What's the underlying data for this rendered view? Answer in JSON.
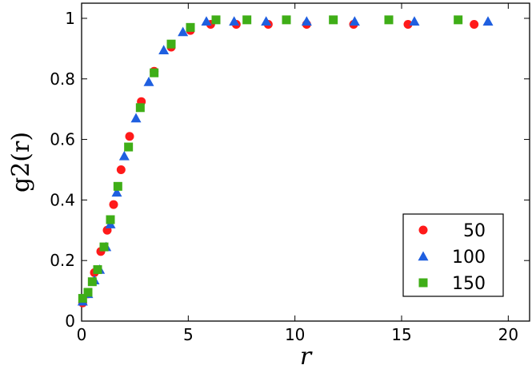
{
  "chart_data": {
    "type": "scatter",
    "xlabel": "r",
    "ylabel": "g2(r)",
    "xlim": [
      0,
      21
    ],
    "ylim": [
      0,
      1.05
    ],
    "xticks": [
      0,
      5,
      10,
      15,
      20
    ],
    "yticks": [
      0,
      0.2,
      0.4,
      0.6,
      0.8,
      1
    ],
    "x_tick_labels": [
      "0",
      "5",
      "10",
      "15",
      "20"
    ],
    "y_tick_labels": [
      "0",
      "0.2",
      "0.4",
      "0.6",
      "0.8",
      "1"
    ],
    "grid": false,
    "legend_position": "bottom-right",
    "series": [
      {
        "name": "50",
        "marker": "circle",
        "color": "#ff1a1a",
        "points": [
          [
            0.05,
            0.06
          ],
          [
            0.3,
            0.09
          ],
          [
            0.6,
            0.16
          ],
          [
            0.9,
            0.23
          ],
          [
            1.2,
            0.3
          ],
          [
            1.5,
            0.385
          ],
          [
            1.85,
            0.5
          ],
          [
            2.25,
            0.61
          ],
          [
            2.8,
            0.725
          ],
          [
            3.4,
            0.825
          ],
          [
            4.2,
            0.905
          ],
          [
            5.1,
            0.96
          ],
          [
            6.05,
            0.98
          ],
          [
            7.25,
            0.98
          ],
          [
            8.75,
            0.98
          ],
          [
            10.55,
            0.98
          ],
          [
            12.75,
            0.98
          ],
          [
            15.3,
            0.98
          ],
          [
            18.4,
            0.98
          ]
        ]
      },
      {
        "name": "100",
        "marker": "triangle",
        "color": "#1f5fe0",
        "points": [
          [
            0.05,
            0.065
          ],
          [
            0.3,
            0.09
          ],
          [
            0.6,
            0.135
          ],
          [
            0.85,
            0.17
          ],
          [
            1.15,
            0.245
          ],
          [
            1.35,
            0.32
          ],
          [
            1.65,
            0.425
          ],
          [
            2.0,
            0.545
          ],
          [
            2.55,
            0.67
          ],
          [
            3.15,
            0.79
          ],
          [
            3.85,
            0.895
          ],
          [
            4.75,
            0.955
          ],
          [
            5.85,
            0.99
          ],
          [
            7.15,
            0.99
          ],
          [
            8.65,
            0.99
          ],
          [
            10.55,
            0.99
          ],
          [
            12.8,
            0.99
          ],
          [
            15.6,
            0.99
          ],
          [
            19.05,
            0.99
          ]
        ]
      },
      {
        "name": "150",
        "marker": "square",
        "color": "#3fae17",
        "points": [
          [
            0.05,
            0.075
          ],
          [
            0.3,
            0.095
          ],
          [
            0.5,
            0.13
          ],
          [
            0.75,
            0.17
          ],
          [
            1.05,
            0.245
          ],
          [
            1.35,
            0.335
          ],
          [
            1.7,
            0.445
          ],
          [
            2.2,
            0.575
          ],
          [
            2.75,
            0.705
          ],
          [
            3.4,
            0.82
          ],
          [
            4.2,
            0.915
          ],
          [
            5.1,
            0.97
          ],
          [
            6.3,
            0.995
          ],
          [
            7.75,
            0.995
          ],
          [
            9.6,
            0.995
          ],
          [
            11.8,
            0.995
          ],
          [
            14.4,
            0.995
          ],
          [
            17.65,
            0.995
          ]
        ]
      }
    ]
  }
}
